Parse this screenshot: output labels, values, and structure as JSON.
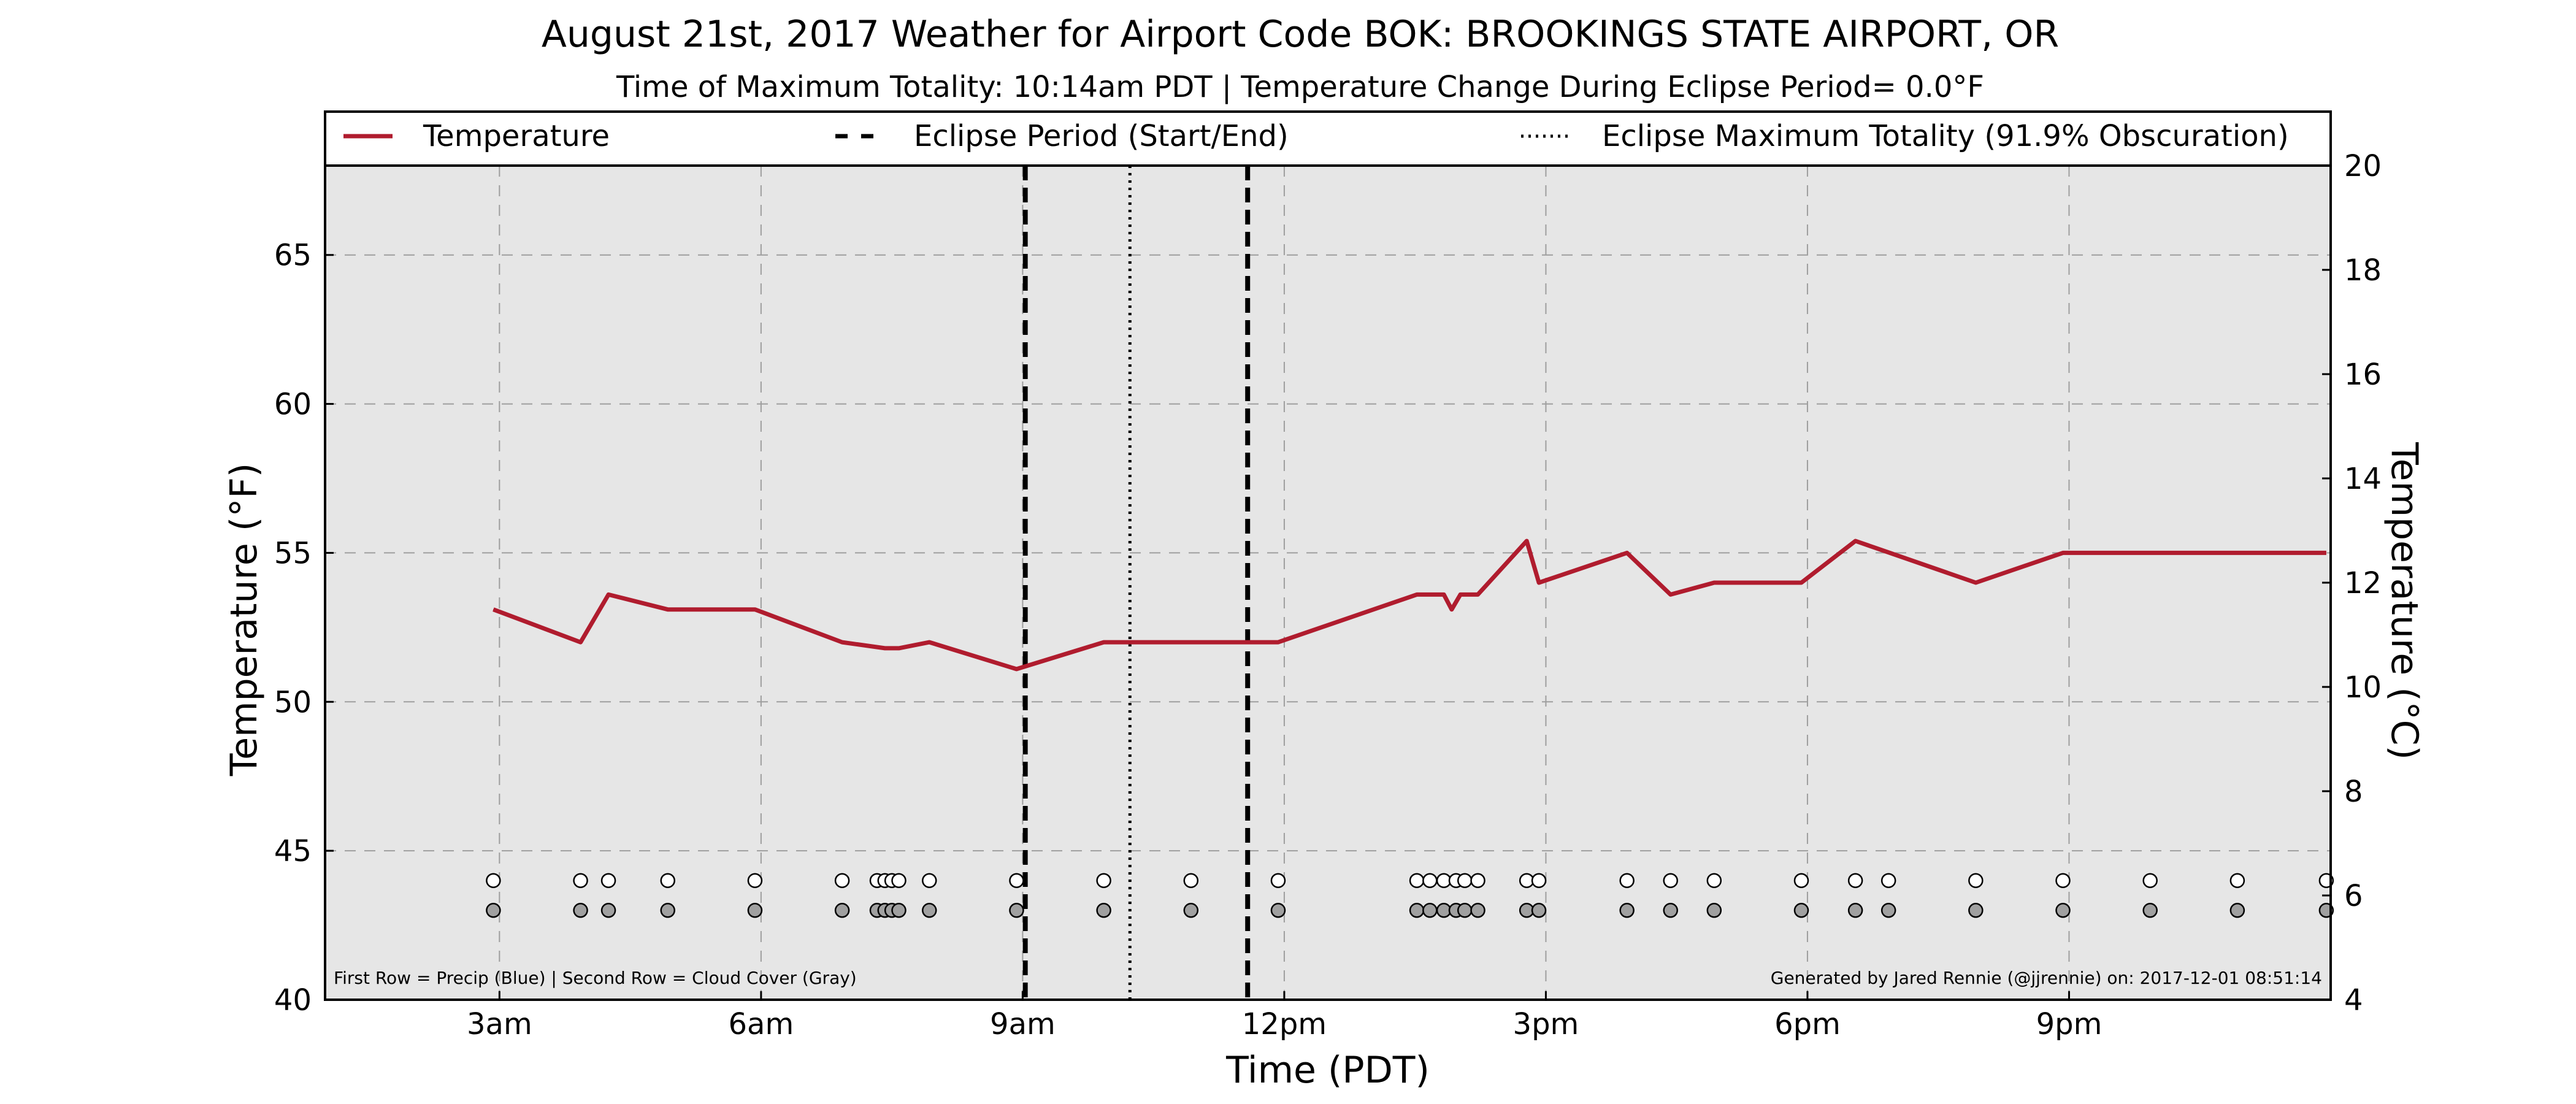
{
  "title": "August 21st, 2017 Weather for Airport Code BOK: BROOKINGS STATE AIRPORT, OR",
  "subtitle": "Time of Maximum Totality: 10:14am PDT | Temperature Change During Eclipse Period= 0.0°F",
  "xlabel": "Time (PDT)",
  "ylabel_left": "Temperature (°F)",
  "ylabel_right": "Temperature (°C)",
  "legend": {
    "temperature": "Temperature",
    "eclipse_period": "Eclipse Period (Start/End)",
    "max_totality": "Eclipse Maximum Totality (91.9% Obscuration)"
  },
  "footnote_left": "First Row = Precip (Blue) | Second Row = Cloud Cover (Gray)",
  "footnote_right": "Generated by Jared Rennie (@jjrennie) on: 2017-12-01 08:51:14",
  "colors": {
    "temperature_line": "#b01c2e",
    "plot_background": "#e6e6e6",
    "precip_marker": "#ffffff",
    "cloud_marker": "#a0a0a0",
    "grid": "#9e9e9e"
  },
  "chart_data": {
    "type": "line",
    "xlim": [
      1.0,
      24.0
    ],
    "ylim": [
      40,
      68
    ],
    "ylim_right": [
      4,
      20
    ],
    "grid": true,
    "legend_position": "top",
    "x_ticks": [
      {
        "value": 3,
        "label": "3am"
      },
      {
        "value": 6,
        "label": "6am"
      },
      {
        "value": 9,
        "label": "9am"
      },
      {
        "value": 12,
        "label": "12pm"
      },
      {
        "value": 15,
        "label": "3pm"
      },
      {
        "value": 18,
        "label": "6pm"
      },
      {
        "value": 21,
        "label": "9pm"
      }
    ],
    "y_ticks": [
      40,
      45,
      50,
      55,
      60,
      65
    ],
    "y_ticks_right": [
      4,
      6,
      8,
      10,
      12,
      14,
      16,
      18,
      20
    ],
    "series": [
      {
        "name": "Temperature",
        "x": [
          2.93,
          3.93,
          4.25,
          4.93,
          5.93,
          6.93,
          7.42,
          7.58,
          7.93,
          8.93,
          9.93,
          10.93,
          11.93,
          13.52,
          13.83,
          13.92,
          14.02,
          14.22,
          14.78,
          14.92,
          15.93,
          16.43,
          16.93,
          17.93,
          18.55,
          19.93,
          20.93,
          21.93,
          22.93,
          23.95
        ],
        "values": [
          53.1,
          52.0,
          53.6,
          53.1,
          53.1,
          52.0,
          51.8,
          51.8,
          52.0,
          51.1,
          52.0,
          52.0,
          52.0,
          53.6,
          53.6,
          53.1,
          53.6,
          53.6,
          55.4,
          54.0,
          55.0,
          53.6,
          54.0,
          54.0,
          55.4,
          54.0,
          55.0,
          55.0,
          55.0,
          55.0
        ]
      }
    ],
    "eclipse_start": 9.03,
    "eclipse_end": 11.58,
    "max_totality": 10.23,
    "precip_row_value": 44,
    "cloud_row_value": 43,
    "observation_times": [
      2.93,
      3.93,
      4.25,
      4.93,
      5.93,
      6.93,
      7.33,
      7.42,
      7.5,
      7.58,
      7.93,
      8.93,
      9.93,
      10.93,
      11.93,
      13.52,
      13.67,
      13.83,
      13.97,
      14.07,
      14.22,
      14.78,
      14.92,
      15.93,
      16.43,
      16.93,
      17.93,
      18.55,
      18.93,
      19.93,
      20.93,
      21.93,
      22.93,
      23.95
    ]
  }
}
